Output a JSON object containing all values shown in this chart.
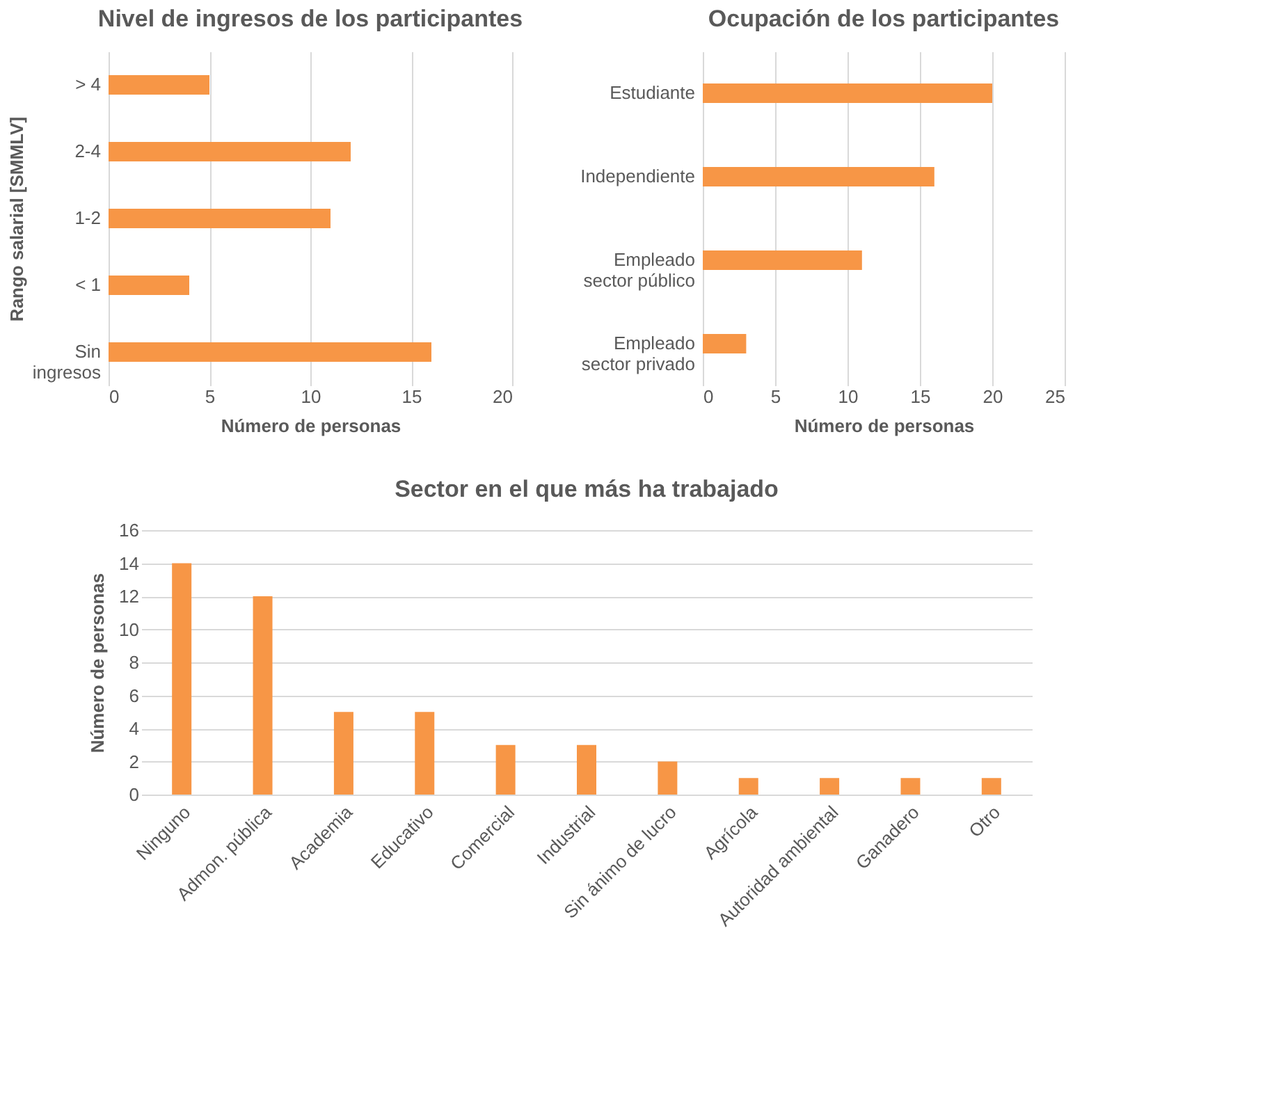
{
  "chart_data": [
    {
      "type": "bar",
      "orientation": "horizontal",
      "title": "Nivel de ingresos de los participantes",
      "xlabel": "Número de personas",
      "ylabel": "Rango salarial [SMMLV]",
      "categories": [
        "> 4",
        "2-4",
        "1-2",
        "< 1",
        "Sin\ningresos"
      ],
      "values": [
        5,
        12,
        11,
        4,
        16
      ],
      "color": "#f79646",
      "xlim": [
        0,
        20
      ],
      "xticks": [
        0,
        5,
        10,
        15,
        20
      ],
      "grid": "x"
    },
    {
      "type": "bar",
      "orientation": "horizontal",
      "title": "Ocupación de los participantes",
      "xlabel": "Número de personas",
      "categories": [
        "Estudiante",
        "Independiente",
        "Empleado\nsector público",
        "Empleado\nsector privado"
      ],
      "values": [
        20,
        16,
        11,
        3
      ],
      "color": "#f79646",
      "xlim": [
        0,
        25
      ],
      "xticks": [
        0,
        5,
        10,
        15,
        20,
        25
      ],
      "grid": "x"
    },
    {
      "type": "bar",
      "title": "Sector en el que más ha trabajado",
      "ylabel": "Número de personas",
      "categories": [
        "Ninguno",
        "Admon. pública",
        "Academia",
        "Educativo",
        "Comercial",
        "Industrial",
        "Sin ánimo de lucro",
        "Agrícola",
        "Autoridad ambiental",
        "Ganadero",
        "Otro"
      ],
      "values": [
        14,
        12,
        5,
        5,
        3,
        3,
        2,
        1,
        1,
        1,
        1
      ],
      "color": "#f79646",
      "ylim": [
        0,
        16
      ],
      "yticks": [
        0,
        2,
        4,
        6,
        8,
        10,
        12,
        14,
        16
      ],
      "grid": "y"
    }
  ]
}
